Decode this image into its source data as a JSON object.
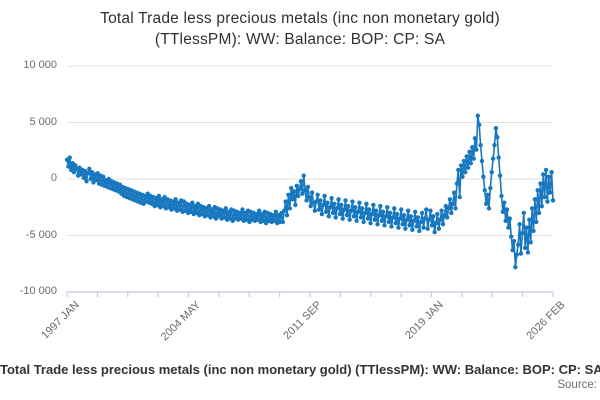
{
  "title": {
    "line1": "Total Trade less precious metals (inc non monetary gold)",
    "line2": "(TTlessPM): WW: Balance: BOP: CP: SA"
  },
  "footer": {
    "legend": "Total Trade less precious metals (inc non monetary gold) (TTlessPM): WW: Balance: BOP: CP: SA",
    "source": "Source:"
  },
  "colors": {
    "line": "#1878bf",
    "grid": "#e0e0e0",
    "axis": "#c3cce3",
    "tick_label": "#6b6b6b",
    "title_text": "#303030"
  },
  "chart_data": {
    "type": "line",
    "title": "Total Trade less precious metals (inc non monetary gold) (TTlessPM): WW: Balance: BOP: CP: SA",
    "series_name": "TTlessPM WW Balance BOP CP SA",
    "frequency": "monthly",
    "x_start": "1997 JAN",
    "x_end": "2026 FEB",
    "x_tick_labels": [
      "1997 JAN",
      "2004 MAY",
      "2011 SEP",
      "2019 JAN",
      "2026 FEB"
    ],
    "x_minor_tick_count": 17,
    "y_ticks": [
      10000,
      5000,
      0,
      -5000,
      -10000
    ],
    "y_tick_labels": [
      "10 000",
      "5 000",
      "0",
      "-5 000",
      "-10 000"
    ],
    "ylim": [
      -10000,
      10000
    ],
    "grid": "horizontal",
    "legend_position": "bottom",
    "values": [
      1700,
      1100,
      1900,
      800,
      1400,
      600,
      1200,
      900,
      300,
      1000,
      400,
      800,
      100,
      700,
      -200,
      500,
      900,
      0,
      600,
      -300,
      400,
      -100,
      500,
      -400,
      300,
      -500,
      200,
      -600,
      -100,
      -700,
      0,
      -800,
      -200,
      -900,
      -300,
      -1000,
      -400,
      -1100,
      -500,
      -1300,
      -700,
      -1500,
      -800,
      -1600,
      -900,
      -1700,
      -1000,
      -1800,
      -1100,
      -1900,
      -1200,
      -2000,
      -1300,
      -2100,
      -1400,
      -2200,
      -1500,
      -2000,
      -1300,
      -2100,
      -1500,
      -2200,
      -1600,
      -2400,
      -1700,
      -2300,
      -1500,
      -2500,
      -1800,
      -2400,
      -1600,
      -2600,
      -1800,
      -2500,
      -1900,
      -2700,
      -2000,
      -2600,
      -1800,
      -2800,
      -2100,
      -2700,
      -1900,
      -2900,
      -2000,
      -2800,
      -2200,
      -3000,
      -2300,
      -2900,
      -2100,
      -3100,
      -2400,
      -3000,
      -2200,
      -3200,
      -2400,
      -3100,
      -2500,
      -3300,
      -2600,
      -3200,
      -2400,
      -3400,
      -2700,
      -3300,
      -2500,
      -3500,
      -2600,
      -3300,
      -2700,
      -3500,
      -2800,
      -3400,
      -2600,
      -3600,
      -2900,
      -3500,
      -2700,
      -3700,
      -2800,
      -3500,
      -2900,
      -3600,
      -3000,
      -3500,
      -2700,
      -3700,
      -3000,
      -3600,
      -2800,
      -3800,
      -2900,
      -3600,
      -3000,
      -3700,
      -3100,
      -3600,
      -2800,
      -3800,
      -3100,
      -3700,
      -2900,
      -3900,
      -3000,
      -3700,
      -3100,
      -3800,
      -3200,
      -3700,
      -2900,
      -3900,
      -3200,
      -3800,
      -3000,
      -3800,
      -2800,
      -2000,
      -3200,
      -1400,
      -2600,
      -800,
      -1800,
      -1100,
      -2300,
      -600,
      -1500,
      -900,
      -200,
      -1300,
      300,
      -1000,
      -1900,
      -700,
      -1600,
      -2400,
      -1200,
      -2100,
      -2800,
      -2000,
      -1400,
      -2700,
      -1900,
      -3100,
      -2300,
      -1500,
      -2900,
      -2100,
      -3300,
      -2500,
      -1700,
      -3000,
      -2200,
      -3400,
      -2600,
      -1800,
      -3100,
      -2300,
      -3500,
      -2700,
      -1900,
      -3200,
      -2400,
      -3600,
      -2800,
      -2000,
      -3300,
      -2500,
      -3700,
      -2900,
      -2100,
      -3400,
      -2600,
      -3800,
      -3000,
      -2200,
      -3500,
      -2700,
      -3900,
      -3100,
      -2300,
      -3600,
      -2800,
      -4000,
      -3200,
      -2400,
      -3700,
      -2900,
      -4100,
      -3300,
      -2500,
      -3800,
      -3000,
      -4200,
      -3400,
      -2600,
      -3900,
      -3100,
      -4300,
      -3500,
      -2700,
      -4000,
      -3200,
      -4400,
      -3600,
      -2800,
      -4100,
      -3300,
      -4500,
      -3700,
      -2900,
      -4200,
      -3400,
      -4600,
      -3800,
      -3000,
      -4300,
      -3500,
      -2700,
      -4400,
      -3600,
      -2800,
      -4100,
      -3300,
      -4700,
      -3900,
      -3100,
      -4400,
      -3600,
      -2800,
      -4000,
      -3200,
      -2400,
      -3400,
      -2600,
      -1800,
      -3000,
      -2200,
      -1200,
      -2600,
      -400,
      800,
      -1600,
      1200,
      200,
      1600,
      600,
      2000,
      1000,
      2400,
      1400,
      2800,
      1800,
      3600,
      2600,
      5600,
      4800,
      3000,
      1600,
      200,
      -1000,
      -2200,
      -1400,
      -2600,
      -800,
      600,
      1800,
      3000,
      4500,
      3700,
      1900,
      300,
      -1500,
      -2900,
      -2100,
      -3700,
      -2700,
      -4300,
      -3500,
      -5100,
      -6300,
      -5500,
      -7800,
      -6700,
      -5800,
      -4000,
      -6600,
      -4800,
      -3000,
      -6100,
      -4300,
      -6500,
      -3600,
      -5600,
      -2600,
      -4600,
      -1800,
      -3800,
      -1000,
      -3000,
      -400,
      -2400,
      400,
      -1600,
      800,
      -2000,
      200,
      -1200,
      600,
      -1900
    ]
  }
}
